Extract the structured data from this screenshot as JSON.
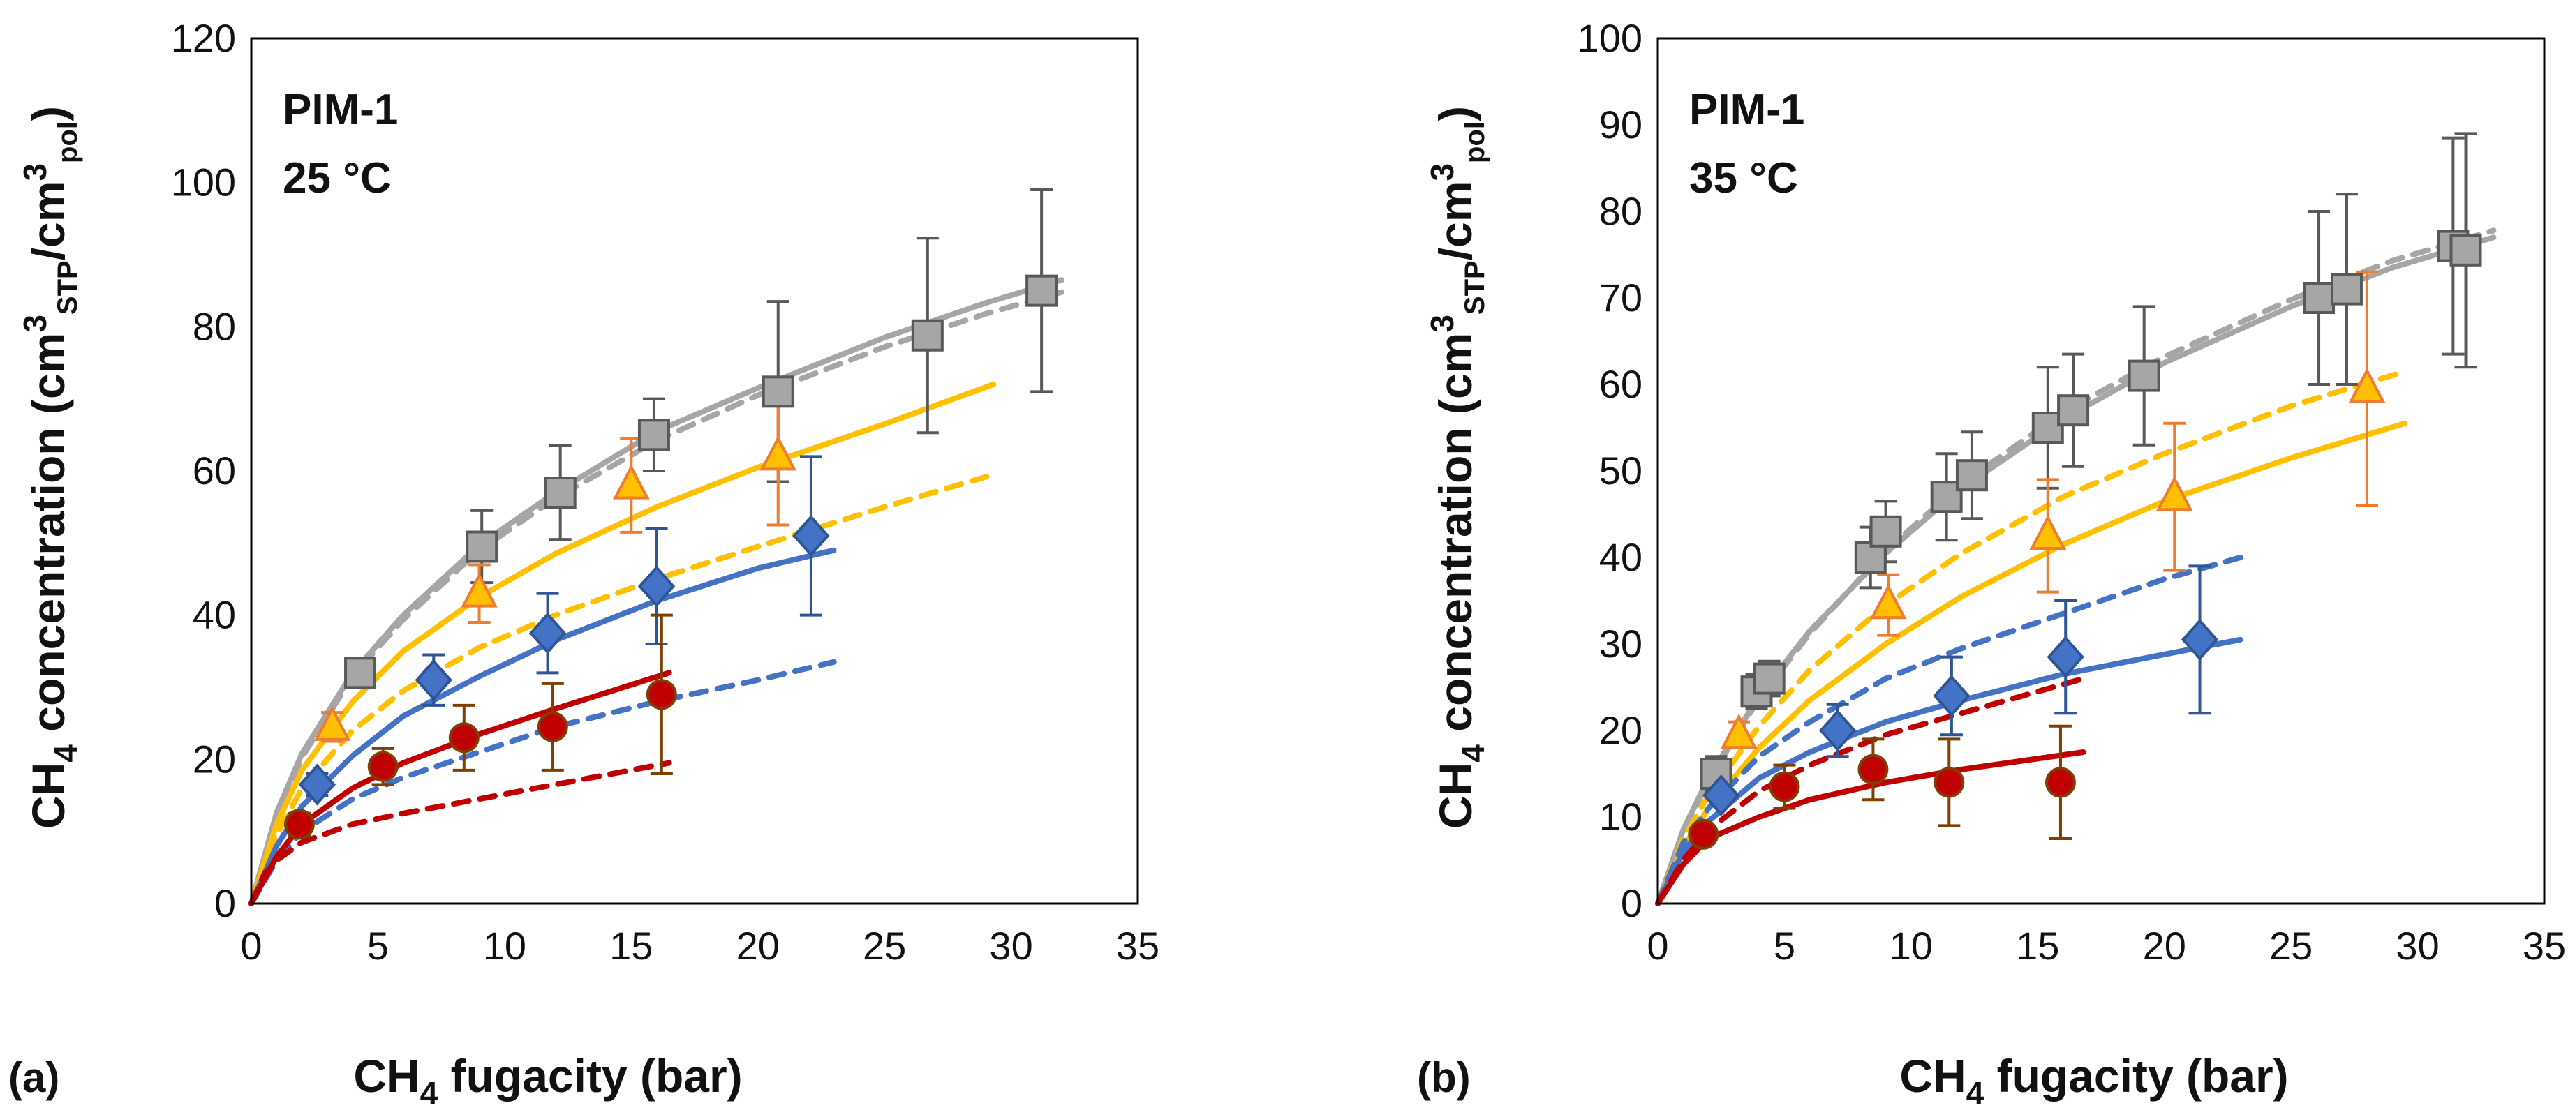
{
  "colors": {
    "gray": "#a6a6a6",
    "orange": "#ffc000",
    "blue": "#4472c4",
    "red": "#c00000",
    "axis": "#000000"
  },
  "chart_data": [
    {
      "type": "scatter",
      "panel_label": "(a)",
      "annotation": [
        "PIM-1",
        "25 °C"
      ],
      "xlabel": {
        "pre": "CH",
        "sub": "4",
        "post": " fugacity (bar)"
      },
      "ylabel": {
        "p1": "CH",
        "s1": "4",
        "p2": " concentration (cm",
        "u1": "3",
        "s2": "STP",
        "p3": "/cm",
        "u2": "3",
        "s3": "pol",
        "p4": ")"
      },
      "xlim": [
        0,
        35
      ],
      "ylim": [
        0,
        120
      ],
      "xticks": [
        "0",
        "5",
        "10",
        "15",
        "20",
        "25",
        "30",
        "35"
      ],
      "yticks": [
        "0",
        "20",
        "40",
        "60",
        "80",
        "100",
        "120"
      ],
      "series": [
        {
          "name": "gray",
          "marker": "square",
          "color": "gray",
          "stroke": "#595959",
          "x": [
            4.3,
            9.1,
            12.2,
            15.9,
            20.8,
            26.7,
            31.2
          ],
          "y": [
            32,
            49.5,
            57,
            65,
            71,
            78.8,
            85
          ],
          "err": [
            2,
            5,
            6.5,
            5,
            12.5,
            13.5,
            14
          ]
        },
        {
          "name": "orange",
          "marker": "triangle",
          "color": "orange",
          "stroke": "#ed7d31",
          "x": [
            3.2,
            9.0,
            15.0,
            20.8
          ],
          "y": [
            24.5,
            43,
            58,
            62
          ],
          "err": [
            2,
            4,
            6.5,
            9.5
          ]
        },
        {
          "name": "blue",
          "marker": "diamond",
          "color": "blue",
          "stroke": "#2f5597",
          "x": [
            2.6,
            7.2,
            11.7,
            16.0,
            22.1
          ],
          "y": [
            16.5,
            31,
            37.5,
            44,
            51
          ],
          "err": [
            1.5,
            3.5,
            5.5,
            8,
            11
          ]
        },
        {
          "name": "red",
          "marker": "circle",
          "color": "red",
          "stroke": "#7f3f00",
          "x": [
            1.9,
            5.2,
            8.4,
            11.9,
            16.2
          ],
          "y": [
            11,
            19,
            23,
            24.5,
            29
          ],
          "err": [
            1.5,
            2.5,
            4.5,
            6,
            11
          ]
        }
      ],
      "fits": [
        {
          "color": "gray",
          "dash": false,
          "x": [
            0,
            1,
            2,
            4,
            6,
            9,
            12,
            16,
            20,
            25,
            29,
            32
          ],
          "y": [
            0,
            12.6,
            20.8,
            32,
            40,
            49.7,
            57,
            65.5,
            71.5,
            78.5,
            83.3,
            86.5
          ]
        },
        {
          "color": "gray",
          "dash": true,
          "x": [
            0,
            1,
            2,
            4,
            6,
            9,
            12,
            16,
            20,
            25,
            29,
            32
          ],
          "y": [
            0,
            12.2,
            20.3,
            31.5,
            39.4,
            49,
            56.2,
            64.2,
            70.5,
            77.2,
            81.8,
            84.8
          ]
        },
        {
          "color": "orange",
          "dash": false,
          "x": [
            0,
            1,
            2,
            4,
            6,
            9,
            12,
            16,
            20,
            25,
            29.3
          ],
          "y": [
            0,
            11,
            18.5,
            28,
            35,
            42.5,
            48.5,
            55,
            60.5,
            66.5,
            72
          ]
        },
        {
          "color": "orange",
          "dash": true,
          "x": [
            0,
            1,
            2,
            4,
            6,
            9,
            12,
            16,
            20,
            25,
            29.3
          ],
          "y": [
            0,
            9.5,
            16,
            24,
            29.5,
            35.5,
            40,
            45,
            49.5,
            55,
            59.5
          ]
        },
        {
          "color": "blue",
          "dash": false,
          "x": [
            0,
            1,
            2,
            4,
            6,
            9,
            12,
            16,
            20,
            23
          ],
          "y": [
            0,
            8,
            13.5,
            20.5,
            26,
            31.5,
            36.5,
            42,
            46.5,
            49
          ]
        },
        {
          "color": "blue",
          "dash": true,
          "x": [
            0,
            1,
            2,
            4,
            6,
            9,
            12,
            16,
            20,
            23
          ],
          "y": [
            0,
            6,
            10,
            14.5,
            17.5,
            21,
            24.5,
            28,
            31,
            33.5
          ]
        },
        {
          "color": "red",
          "dash": false,
          "x": [
            0,
            1,
            2,
            4,
            6,
            9,
            12,
            16.5
          ],
          "y": [
            0,
            6.5,
            11,
            16,
            19.5,
            23.5,
            27,
            32
          ]
        },
        {
          "color": "red",
          "dash": true,
          "x": [
            0,
            0.5,
            1,
            2,
            4,
            6,
            9,
            12,
            16.5
          ],
          "y": [
            0,
            4,
            6,
            8.5,
            11,
            12.5,
            14.5,
            16.5,
            19.5
          ]
        }
      ]
    },
    {
      "type": "scatter",
      "panel_label": "(b)",
      "annotation": [
        "PIM-1",
        "35 °C"
      ],
      "xlabel": {
        "pre": "CH",
        "sub": "4",
        "post": " fugacity (bar)"
      },
      "ylabel": {
        "p1": "CH",
        "s1": "4",
        "p2": " concentration (cm",
        "u1": "3",
        "s2": "STP",
        "p3": "/cm",
        "u2": "3",
        "s3": "pol",
        "p4": ")"
      },
      "xlim": [
        0,
        35
      ],
      "ylim": [
        0,
        100
      ],
      "xticks": [
        "0",
        "5",
        "10",
        "15",
        "20",
        "25",
        "30",
        "35"
      ],
      "yticks": [
        "0",
        "10",
        "20",
        "30",
        "40",
        "50",
        "60",
        "70",
        "80",
        "90",
        "100"
      ],
      "series": [
        {
          "name": "gray",
          "marker": "square",
          "color": "gray",
          "stroke": "#595959",
          "x": [
            2.3,
            3.9,
            4.4,
            8.4,
            9.0,
            11.4,
            12.4,
            15.4,
            16.4,
            19.2,
            26.1,
            27.2,
            31.4,
            31.9
          ],
          "y": [
            15,
            24.5,
            26,
            40,
            43,
            47,
            49.5,
            55,
            57,
            61,
            70,
            71,
            76,
            75.5
          ],
          "err": [
            2,
            2,
            2,
            3.5,
            3.5,
            5,
            5,
            7,
            6.5,
            8,
            10,
            11,
            12.5,
            13.5
          ]
        },
        {
          "name": "orange",
          "marker": "triangle",
          "color": "orange",
          "stroke": "#ed7d31",
          "x": [
            3.2,
            9.1,
            15.4,
            20.4,
            28.0
          ],
          "y": [
            19.5,
            34.5,
            42.5,
            47,
            59.5
          ],
          "err": [
            1.5,
            3.5,
            6.5,
            8.5,
            13.5
          ]
        },
        {
          "name": "blue",
          "marker": "diamond",
          "color": "blue",
          "stroke": "#2f5597",
          "x": [
            2.5,
            7.1,
            11.6,
            16.1,
            21.4
          ],
          "y": [
            12.5,
            20,
            24,
            28.5,
            30.5
          ],
          "err": [
            1,
            3,
            4.5,
            6.5,
            8.5
          ]
        },
        {
          "name": "red",
          "marker": "circle",
          "color": "red",
          "stroke": "#7f3f00",
          "x": [
            1.8,
            5.0,
            8.5,
            11.5,
            15.9
          ],
          "y": [
            8,
            13.5,
            15.5,
            14,
            14
          ],
          "err": [
            1,
            2.5,
            3.5,
            5,
            6.5
          ]
        }
      ],
      "fits": [
        {
          "color": "gray",
          "dash": false,
          "x": [
            0,
            1,
            2,
            4,
            6,
            9,
            12,
            16,
            20,
            25,
            29,
            33
          ],
          "y": [
            0,
            8.5,
            14.5,
            24,
            31.5,
            40.5,
            48,
            56,
            62.5,
            69,
            73.5,
            77
          ]
        },
        {
          "color": "gray",
          "dash": true,
          "x": [
            0,
            1,
            2,
            4,
            6,
            9,
            12,
            16,
            20,
            25,
            29,
            33
          ],
          "y": [
            0,
            8.2,
            14.2,
            23.7,
            31.2,
            40.8,
            48.5,
            56.8,
            63.2,
            69.8,
            74.3,
            77.8
          ]
        },
        {
          "color": "orange",
          "dash": false,
          "x": [
            0,
            1,
            2,
            4,
            6,
            9,
            12,
            16,
            20,
            25,
            29.5
          ],
          "y": [
            0,
            6.5,
            11,
            18,
            23.5,
            30,
            35.5,
            41.5,
            46.5,
            51.5,
            55.5
          ]
        },
        {
          "color": "orange",
          "dash": true,
          "x": [
            0,
            1,
            2,
            4,
            6,
            9,
            12,
            16,
            20,
            25,
            29.5
          ],
          "y": [
            0,
            7.5,
            12.5,
            20.5,
            27,
            34.5,
            40.5,
            47,
            52,
            57.5,
            61.5
          ]
        },
        {
          "color": "blue",
          "dash": false,
          "x": [
            0,
            1,
            2,
            4,
            6,
            9,
            12,
            16,
            20,
            23
          ],
          "y": [
            0,
            6,
            9.5,
            14.5,
            17.5,
            21,
            23.5,
            26.5,
            28.8,
            30.5
          ]
        },
        {
          "color": "blue",
          "dash": true,
          "x": [
            0,
            1,
            2,
            4,
            6,
            9,
            12,
            16,
            20,
            23
          ],
          "y": [
            0,
            7,
            11,
            17,
            21,
            26,
            29.5,
            33.5,
            37.5,
            40
          ]
        },
        {
          "color": "red",
          "dash": false,
          "x": [
            0,
            1,
            2,
            4,
            6,
            9,
            12,
            16.8
          ],
          "y": [
            0,
            4.5,
            7.5,
            10,
            12,
            14,
            15.5,
            17.5
          ]
        },
        {
          "color": "red",
          "dash": true,
          "x": [
            0,
            1,
            2,
            4,
            6,
            9,
            12,
            16.8
          ],
          "y": [
            0,
            5,
            8.5,
            13,
            16,
            19.5,
            22,
            26
          ]
        }
      ]
    }
  ]
}
